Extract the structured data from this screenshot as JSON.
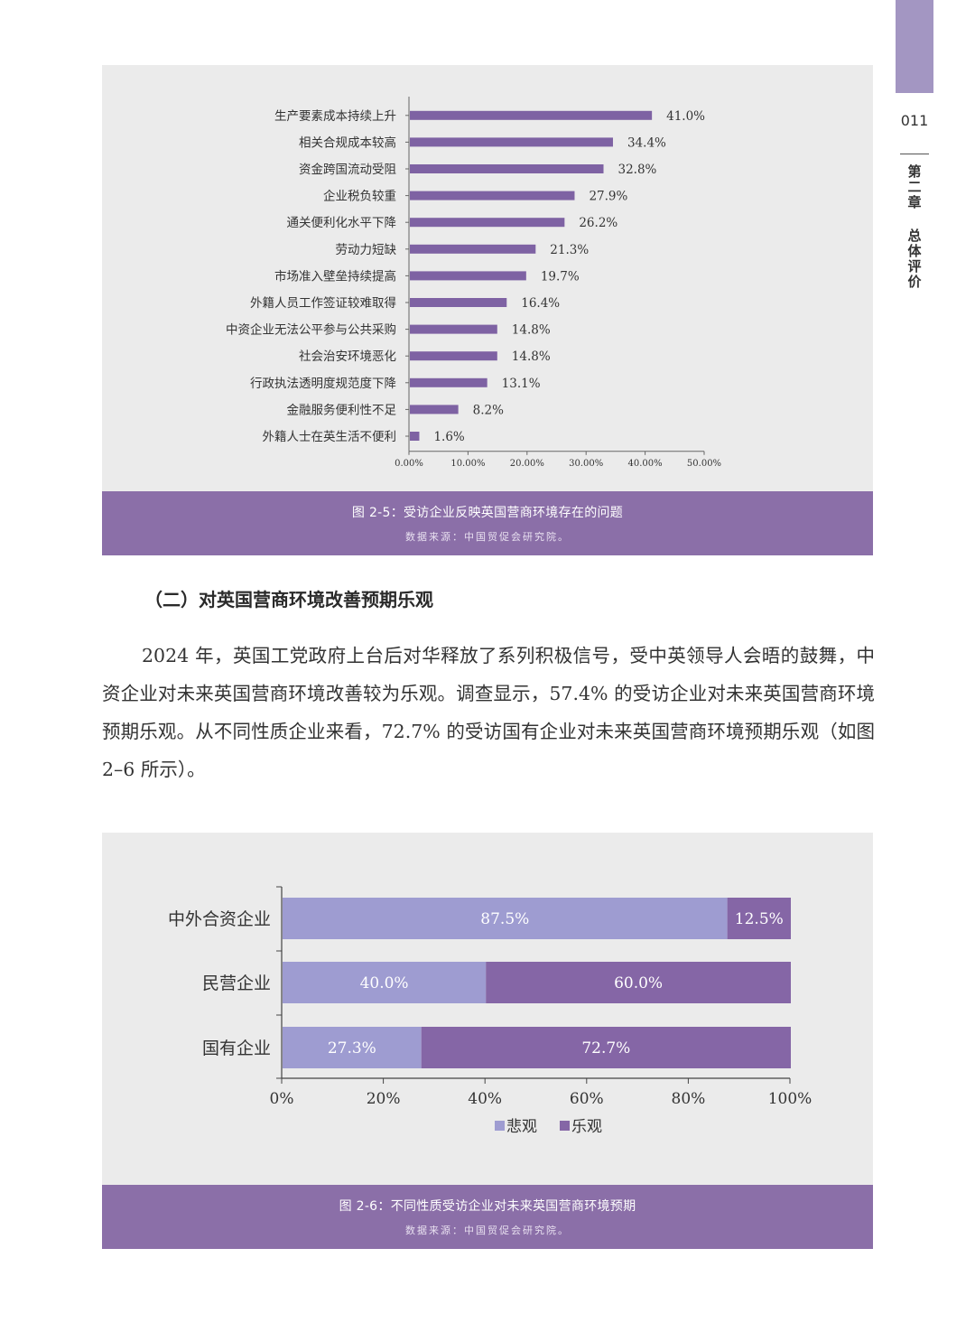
{
  "side": {
    "page_number": "011",
    "chapter": [
      "第",
      "二",
      "章"
    ],
    "section": [
      "总",
      "体",
      "评",
      "价"
    ]
  },
  "figure1": {
    "caption": "图 2-5：受访企业反映英国营商环境存在的问题",
    "source": "数据来源：中国贸促会研究院。"
  },
  "figure2": {
    "caption": "图 2-6：不同性质受访企业对未来英国营商环境预期",
    "source": "数据来源：中国贸促会研究院。"
  },
  "section_heading": "（二）对英国营商环境改善预期乐观",
  "paragraph": "2024 年，英国工党政府上台后对华释放了系列积极信号，受中英领导人会晤的鼓舞，中资企业对未来英国营商环境改善较为乐观。调查显示，57.4% 的受访企业对未来英国营商环境预期乐观。从不同性质企业来看，72.7% 的受访国有企业对未来英国营商环境预期乐观（如图 2–6 所示）。",
  "chart_data": [
    {
      "type": "bar",
      "orientation": "horizontal",
      "categories": [
        "生产要素成本持续上升",
        "相关合规成本较高",
        "资金跨国流动受阻",
        "企业税负较重",
        "通关便利化水平下降",
        "劳动力短缺",
        "市场准入壁垒持续提高",
        "外籍人员工作签证较难取得",
        "中资企业无法公平参与公共采购",
        "社会治安环境恶化",
        "行政执法透明度规范度下降",
        "金融服务便利性不足",
        "外籍人士在英生活不便利"
      ],
      "values": [
        41.0,
        34.4,
        32.8,
        27.9,
        26.2,
        21.3,
        19.7,
        16.4,
        14.8,
        14.8,
        13.1,
        8.2,
        1.6
      ],
      "value_labels": [
        "41.0%",
        "34.4%",
        "32.8%",
        "27.9%",
        "26.2%",
        "21.3%",
        "19.7%",
        "16.4%",
        "14.8%",
        "14.8%",
        "13.1%",
        "8.2%",
        "1.6%"
      ],
      "xlim": [
        0,
        50
      ],
      "xticks": [
        "0.00%",
        "10.00%",
        "20.00%",
        "30.00%",
        "40.00%",
        "50.00%"
      ],
      "bar_color": "#7e62a3",
      "grid": false
    },
    {
      "type": "bar",
      "orientation": "horizontal",
      "stacked": true,
      "categories": [
        "中外合资企业",
        "民营企业",
        "国有企业"
      ],
      "series": [
        {
          "name": "悲观",
          "values": [
            87.5,
            40.0,
            27.3
          ],
          "labels": [
            "87.5%",
            "40.0%",
            "27.3%"
          ],
          "color": "#9e9cd1"
        },
        {
          "name": "乐观",
          "values": [
            12.5,
            60.0,
            72.7
          ],
          "labels": [
            "12.5%",
            "60.0%",
            "72.7%"
          ],
          "color": "#8566a6"
        }
      ],
      "xlim": [
        0,
        100
      ],
      "xticks": [
        "0%",
        "20%",
        "40%",
        "60%",
        "80%",
        "100%"
      ],
      "legend": "bottom",
      "grid": false
    }
  ]
}
